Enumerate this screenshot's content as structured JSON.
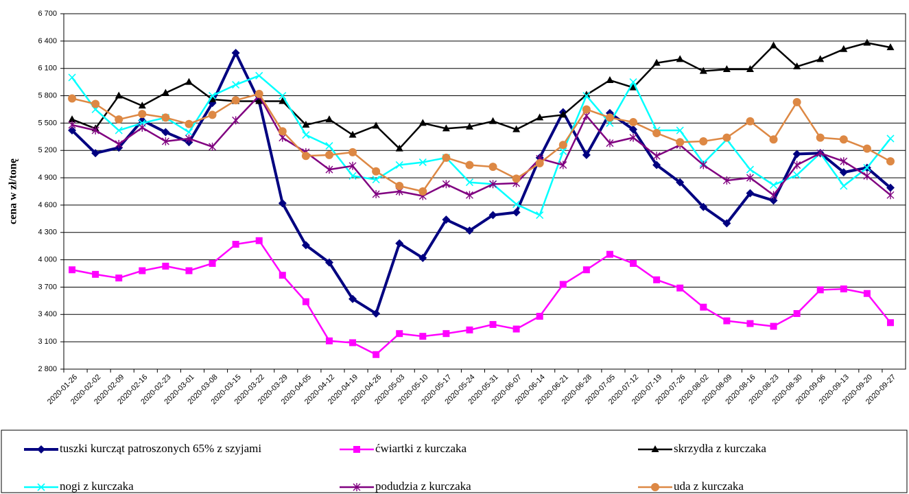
{
  "chart_data": {
    "type": "line",
    "y_label": "cena w zł/tonę",
    "categories": [
      "2020-01-26",
      "2020-02-02",
      "2020-02-09",
      "2020-02-16",
      "2020-02-23",
      "2020-03-01",
      "2020-03-08",
      "2020-03-15",
      "2020-03-22",
      "2020-03-29",
      "2020-04-05",
      "2020-04-12",
      "2020-04-19",
      "2020-04-26",
      "2020-05-03",
      "2020-05-10",
      "2020-05-17",
      "2020-05-24",
      "2020-05-31",
      "2020-06-07",
      "2020-06-14",
      "2020-06-21",
      "2020-06-28",
      "2020-07-05",
      "2020-07-12",
      "2020-07-19",
      "2020-07-26",
      "2020-08-02",
      "2020-08-09",
      "2020-08-16",
      "2020-08-23",
      "2020-08-30",
      "2020-09-06",
      "2020-09-13",
      "2020-09-20",
      "2020-09-27"
    ],
    "ylim": [
      2800,
      6700
    ],
    "yticks": [
      {
        "value": 2800,
        "label": "2 800"
      },
      {
        "value": 3100,
        "label": "3 100"
      },
      {
        "value": 3400,
        "label": "3 400"
      },
      {
        "value": 3700,
        "label": "3 700"
      },
      {
        "value": 4000,
        "label": "4 000"
      },
      {
        "value": 4300,
        "label": "4 300"
      },
      {
        "value": 4600,
        "label": "4 600"
      },
      {
        "value": 4900,
        "label": "4 900"
      },
      {
        "value": 5200,
        "label": "5 200"
      },
      {
        "value": 5500,
        "label": "5 500"
      },
      {
        "value": 5800,
        "label": "5 800"
      },
      {
        "value": 6100,
        "label": "6 100"
      },
      {
        "value": 6400,
        "label": "6 400"
      },
      {
        "value": 6700,
        "label": "6 700"
      }
    ],
    "grid": true,
    "series": [
      {
        "name": "tuszki kurcząt patroszonych 65% z szyjami",
        "color": "#000080",
        "marker": "diamond",
        "values": [
          5420,
          5170,
          5230,
          5530,
          5400,
          5290,
          5720,
          6270,
          5740,
          4620,
          4160,
          3970,
          3570,
          3410,
          4180,
          4020,
          4440,
          4320,
          4490,
          4520,
          5120,
          5620,
          5150,
          5610,
          5430,
          5040,
          4850,
          4580,
          4400,
          4730,
          4650,
          5160,
          5170,
          4960,
          5010,
          4790
        ]
      },
      {
        "name": "ćwiartki z kurczaka",
        "color": "#FF00FF",
        "marker": "square",
        "values": [
          3890,
          3840,
          3800,
          3880,
          3930,
          3880,
          3960,
          4170,
          4210,
          3830,
          3540,
          3110,
          3090,
          2960,
          3190,
          3160,
          3190,
          3230,
          3290,
          3240,
          3380,
          3730,
          3890,
          4060,
          3960,
          3780,
          3690,
          3480,
          3330,
          3300,
          3270,
          3410,
          3670,
          3680,
          3630,
          3310
        ]
      },
      {
        "name": "skrzydła z kurczaka",
        "color": "#000000",
        "marker": "triangle",
        "values": [
          5540,
          5440,
          5800,
          5690,
          5830,
          5950,
          5760,
          5740,
          5740,
          5740,
          5480,
          5540,
          5370,
          5470,
          5220,
          5500,
          5440,
          5460,
          5520,
          5430,
          5560,
          5590,
          5810,
          5970,
          5890,
          6160,
          6200,
          6070,
          6090,
          6090,
          6350,
          6120,
          6200,
          6310,
          6380,
          6330
        ]
      },
      {
        "name": "nogi z kurczaka",
        "color": "#00FFFF",
        "marker": "x",
        "values": [
          6000,
          5650,
          5420,
          5500,
          5560,
          5400,
          5800,
          5920,
          6020,
          5800,
          5370,
          5250,
          4920,
          4880,
          5040,
          5070,
          5120,
          4850,
          4830,
          4610,
          4490,
          5190,
          5800,
          5500,
          5950,
          5420,
          5420,
          5060,
          5320,
          4990,
          4820,
          4930,
          5170,
          4810,
          5010,
          5330
        ]
      },
      {
        "name": "podudzia z kurczaka",
        "color": "#800080",
        "marker": "asterisk",
        "values": [
          5480,
          5420,
          5270,
          5450,
          5300,
          5330,
          5240,
          5530,
          5800,
          5340,
          5180,
          4990,
          5030,
          4720,
          4750,
          4700,
          4830,
          4710,
          4830,
          4840,
          5110,
          5040,
          5580,
          5280,
          5340,
          5140,
          5260,
          5040,
          4870,
          4900,
          4710,
          5040,
          5170,
          5080,
          4920,
          4710
        ]
      },
      {
        "name": "uda z kurczaka",
        "color": "#DD8844",
        "marker": "circle",
        "values": [
          5770,
          5710,
          5540,
          5600,
          5560,
          5490,
          5590,
          5750,
          5820,
          5410,
          5140,
          5150,
          5180,
          4970,
          4810,
          4750,
          5120,
          5040,
          5020,
          4890,
          5060,
          5260,
          5650,
          5560,
          5510,
          5390,
          5290,
          5300,
          5340,
          5520,
          5320,
          5730,
          5340,
          5320,
          5220,
          5080
        ]
      }
    ]
  }
}
